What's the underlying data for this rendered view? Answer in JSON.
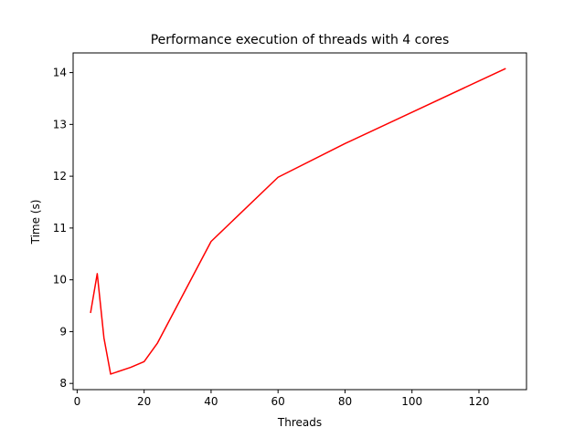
{
  "chart_data": {
    "type": "line",
    "title": "Performance execution of threads with 4 cores",
    "xlabel": "Threads",
    "ylabel": "Time (s)",
    "xlim": [
      -1.2,
      134.2
    ],
    "ylim": [
      7.88,
      14.38
    ],
    "x_ticks": [
      0,
      20,
      40,
      60,
      80,
      100,
      120
    ],
    "y_ticks": [
      8,
      9,
      10,
      11,
      12,
      13,
      14
    ],
    "grid": false,
    "series": [
      {
        "color": "#ff0000",
        "x": [
          4,
          6,
          8,
          10,
          16,
          20,
          24,
          40,
          60,
          80,
          128
        ],
        "y": [
          9.36,
          10.12,
          8.88,
          8.18,
          8.31,
          8.42,
          8.78,
          10.74,
          11.98,
          12.63,
          14.08
        ]
      }
    ]
  }
}
